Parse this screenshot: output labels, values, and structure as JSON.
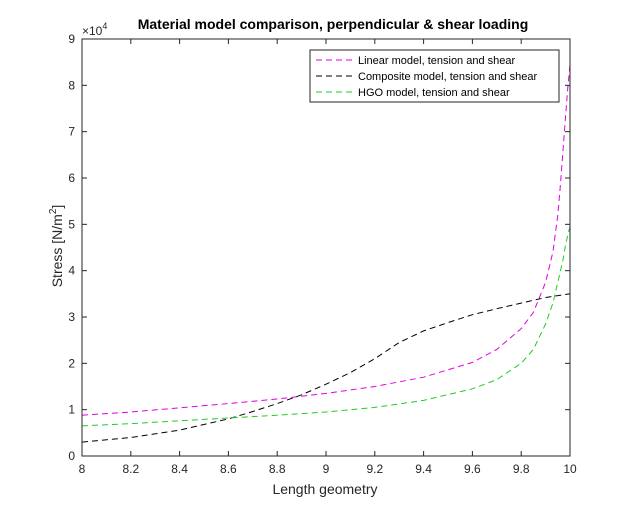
{
  "chart_data": {
    "type": "line",
    "title": "Material model comparison, perpendicular & shear loading",
    "xlabel": "Length geometry",
    "ylabel": "Stress [N/m",
    "ylabel_sup": "2",
    "ylabel_end": "]",
    "xlim": [
      8,
      10
    ],
    "ylim": [
      0,
      9
    ],
    "y_exponent_base": "×10",
    "y_exponent": "4",
    "xticks": [
      8,
      8.2,
      8.4,
      8.6,
      8.8,
      9,
      9.2,
      9.4,
      9.6,
      9.8,
      10
    ],
    "xtick_labels": [
      "8",
      "8.2",
      "8.4",
      "8.6",
      "8.8",
      "9",
      "9.2",
      "9.4",
      "9.6",
      "9.8",
      "10"
    ],
    "yticks": [
      0,
      1,
      2,
      3,
      4,
      5,
      6,
      7,
      8,
      9
    ],
    "ytick_labels": [
      "0",
      "1",
      "2",
      "3",
      "4",
      "5",
      "6",
      "7",
      "8",
      "9"
    ],
    "legend_position": "top-right",
    "series": [
      {
        "name": "Linear model, tension and shear",
        "color": "#e000e0",
        "x": [
          8.0,
          8.2,
          8.4,
          8.6,
          8.8,
          9.0,
          9.2,
          9.4,
          9.6,
          9.7,
          9.8,
          9.85,
          9.9,
          9.93,
          9.95,
          9.96,
          9.97,
          9.98,
          9.99,
          10.0
        ],
        "y": [
          0.88,
          0.95,
          1.04,
          1.13,
          1.23,
          1.35,
          1.5,
          1.7,
          2.02,
          2.3,
          2.75,
          3.1,
          3.75,
          4.4,
          5.2,
          5.8,
          6.5,
          7.2,
          7.9,
          8.45
        ]
      },
      {
        "name": "Composite model, tension and shear",
        "color": "#000000",
        "x": [
          8.0,
          8.2,
          8.4,
          8.6,
          8.7,
          8.8,
          8.9,
          9.0,
          9.1,
          9.2,
          9.3,
          9.4,
          9.5,
          9.6,
          9.7,
          9.8,
          9.9,
          10.0
        ],
        "y": [
          0.3,
          0.4,
          0.56,
          0.8,
          0.96,
          1.13,
          1.32,
          1.55,
          1.8,
          2.1,
          2.45,
          2.7,
          2.88,
          3.05,
          3.18,
          3.3,
          3.42,
          3.5
        ]
      },
      {
        "name": "HGO model, tension and shear",
        "color": "#22cc22",
        "x": [
          8.0,
          8.2,
          8.4,
          8.6,
          8.8,
          9.0,
          9.2,
          9.4,
          9.6,
          9.7,
          9.8,
          9.85,
          9.9,
          9.93,
          9.95,
          9.97,
          9.98,
          9.99,
          10.0
        ],
        "y": [
          0.65,
          0.7,
          0.76,
          0.82,
          0.88,
          0.95,
          1.05,
          1.2,
          1.45,
          1.65,
          2.0,
          2.3,
          2.85,
          3.3,
          3.75,
          4.2,
          4.5,
          4.75,
          4.95
        ]
      }
    ]
  }
}
